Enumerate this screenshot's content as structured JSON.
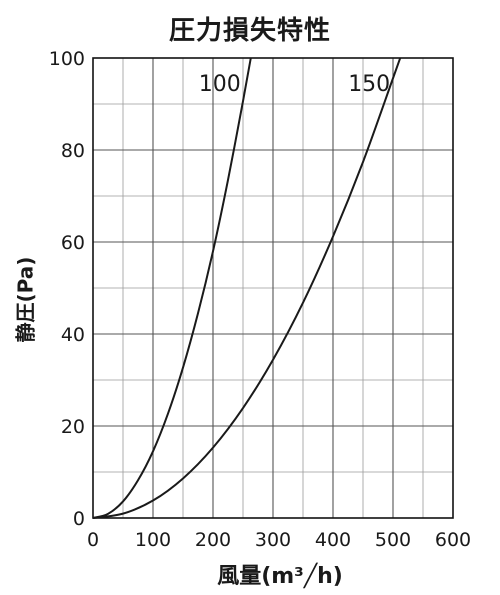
{
  "chart_data": {
    "type": "line",
    "title": "圧力損失特性",
    "xlabel": "風量(m³╱h)",
    "ylabel": "静圧(Pa)",
    "xlim": [
      0,
      600
    ],
    "ylim": [
      0,
      100
    ],
    "x_major_ticks": [
      0,
      100,
      200,
      300,
      400,
      500,
      600
    ],
    "y_major_ticks": [
      0,
      20,
      40,
      60,
      80,
      100
    ],
    "x_minor_step": 50,
    "y_minor_step": 10,
    "grid": true,
    "series": [
      {
        "name": "100",
        "points": [
          [
            0,
            0
          ],
          [
            25,
            0.9
          ],
          [
            50,
            3.6
          ],
          [
            75,
            8.2
          ],
          [
            100,
            14.5
          ],
          [
            125,
            22.7
          ],
          [
            150,
            32.7
          ],
          [
            175,
            44.5
          ],
          [
            200,
            58.0
          ],
          [
            225,
            73.5
          ],
          [
            250,
            90.6
          ],
          [
            263,
            100
          ]
        ]
      },
      {
        "name": "150",
        "points": [
          [
            0,
            0
          ],
          [
            50,
            0.95
          ],
          [
            100,
            3.8
          ],
          [
            150,
            8.6
          ],
          [
            200,
            15.3
          ],
          [
            250,
            23.9
          ],
          [
            300,
            34.4
          ],
          [
            350,
            46.8
          ],
          [
            400,
            61.2
          ],
          [
            450,
            77.4
          ],
          [
            500,
            95.6
          ],
          [
            512,
            100
          ]
        ]
      }
    ]
  }
}
